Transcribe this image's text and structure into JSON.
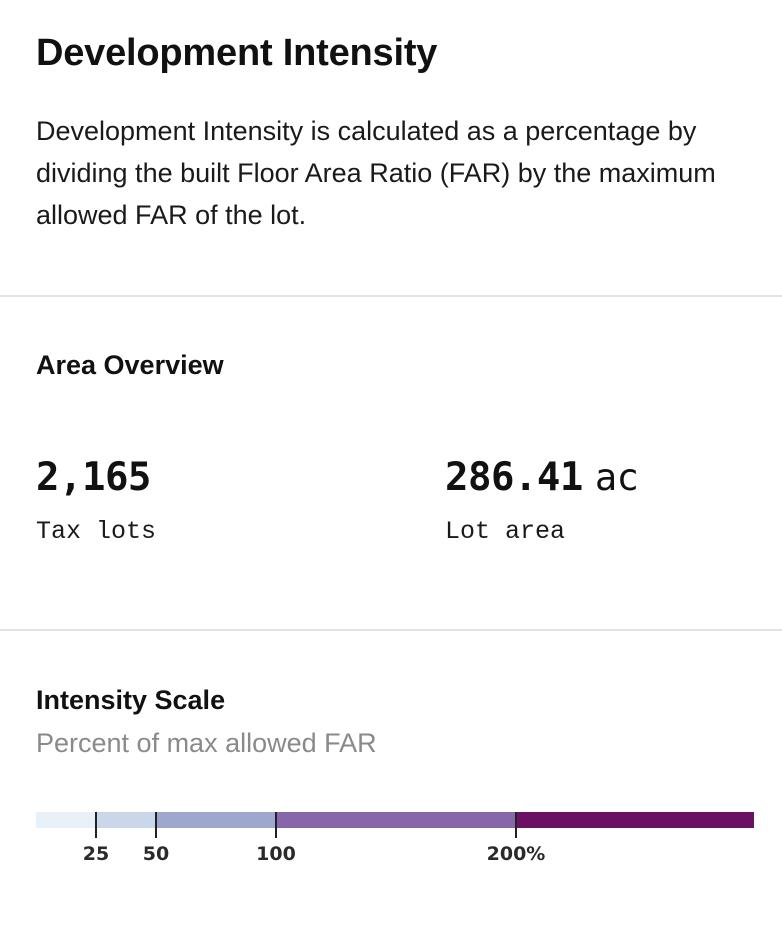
{
  "header": {
    "title": "Development Intensity",
    "description": "Development Intensity is calculated as a percentage by dividing the built Floor Area Ratio (FAR) by the maximum allowed FAR of the lot."
  },
  "area_overview": {
    "heading": "Area Overview",
    "stats": [
      {
        "value": "2,165",
        "unit": "",
        "label": "Tax lots"
      },
      {
        "value": "286.41",
        "unit": "ac",
        "label": "Lot area"
      }
    ]
  },
  "intensity_scale": {
    "heading": "Intensity Scale",
    "subtitle": "Percent of max allowed FAR",
    "segments": [
      {
        "from": 0,
        "to": 25,
        "color": "#e8f1f7"
      },
      {
        "from": 25,
        "to": 50,
        "color": "#c9d7e9"
      },
      {
        "from": 50,
        "to": 100,
        "color": "#9ea7cd"
      },
      {
        "from": 100,
        "to": 200,
        "color": "#8766a9"
      },
      {
        "from": 200,
        "to": 300,
        "color": "#6b1163"
      }
    ],
    "ticks": [
      {
        "value": 25,
        "label": "25"
      },
      {
        "value": 50,
        "label": "50"
      },
      {
        "value": 100,
        "label": "100"
      },
      {
        "value": 200,
        "label": "200%"
      }
    ]
  }
}
